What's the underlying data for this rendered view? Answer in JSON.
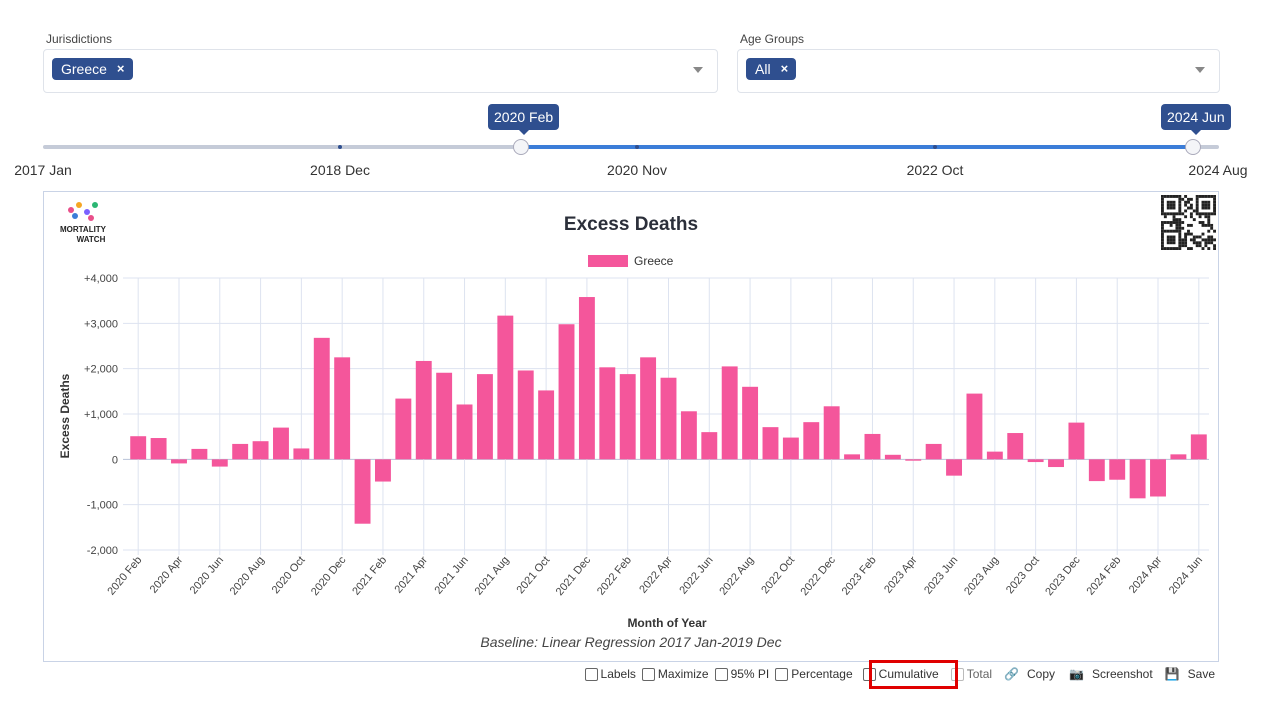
{
  "filters": {
    "jurisdictions": {
      "label": "Jurisdictions",
      "chip": "Greece",
      "remove": "×"
    },
    "age_groups": {
      "label": "Age Groups",
      "chip": "All",
      "remove": "×"
    }
  },
  "slider": {
    "start_value": "2020 Feb",
    "end_value": "2024 Jun",
    "tick_labels": [
      "2017 Jan",
      "2018 Dec",
      "2020 Nov",
      "2022 Oct",
      "2024 Aug"
    ]
  },
  "chart_data": {
    "type": "bar",
    "title": "Excess Deaths",
    "xlabel": "Month of Year",
    "ylabel": "Excess Deaths",
    "subtitle": "Baseline: Linear Regression 2017 Jan-2019 Dec",
    "ylim": [
      -2000,
      4000
    ],
    "yticks": [
      "+4,000",
      "+3,000",
      "+2,000",
      "+1,000",
      "0",
      "-1,000",
      "-2,000"
    ],
    "grid": true,
    "legend_position": "top",
    "series": [
      {
        "name": "Greece",
        "color": "#f4569b",
        "values": [
          510,
          470,
          -90,
          230,
          -160,
          340,
          400,
          700,
          240,
          2680,
          2250,
          -1420,
          -490,
          1340,
          2170,
          1910,
          1210,
          1880,
          3170,
          1960,
          1520,
          2980,
          3580,
          2030,
          1880,
          2250,
          1800,
          1060,
          600,
          2050,
          1600,
          710,
          480,
          820,
          1170,
          110,
          560,
          100,
          -30,
          340,
          -360,
          1450,
          170,
          580,
          -60,
          -170,
          810,
          -480,
          -450,
          -860,
          -820,
          110,
          550
        ]
      }
    ],
    "categories": [
      "2020 Feb",
      "2020 Mar",
      "2020 Apr",
      "2020 May",
      "2020 Jun",
      "2020 Jul",
      "2020 Aug",
      "2020 Sep",
      "2020 Oct",
      "2020 Nov",
      "2020 Dec",
      "2021 Jan",
      "2021 Feb",
      "2021 Mar",
      "2021 Apr",
      "2021 May",
      "2021 Jun",
      "2021 Jul",
      "2021 Aug",
      "2021 Sep",
      "2021 Oct",
      "2021 Nov",
      "2021 Dec",
      "2022 Jan",
      "2022 Feb",
      "2022 Mar",
      "2022 Apr",
      "2022 May",
      "2022 Jun",
      "2022 Jul",
      "2022 Aug",
      "2022 Sep",
      "2022 Oct",
      "2022 Nov",
      "2022 Dec",
      "2023 Jan",
      "2023 Feb",
      "2023 Mar",
      "2023 Apr",
      "2023 May",
      "2023 Jun",
      "2023 Jul",
      "2023 Aug",
      "2023 Sep",
      "2023 Oct",
      "2023 Nov",
      "2023 Dec",
      "2024 Jan",
      "2024 Feb",
      "2024 Mar",
      "2024 Apr",
      "2024 May",
      "2024 Jun"
    ],
    "xtick_labels": [
      "2020 Feb",
      "2020 Apr",
      "2020 Jun",
      "2020 Aug",
      "2020 Oct",
      "2020 Dec",
      "2021 Feb",
      "2021 Apr",
      "2021 Jun",
      "2021 Aug",
      "2021 Oct",
      "2021 Dec",
      "2022 Feb",
      "2022 Apr",
      "2022 Jun",
      "2022 Aug",
      "2022 Oct",
      "2022 Dec",
      "2023 Feb",
      "2023 Apr",
      "2023 Jun",
      "2023 Aug",
      "2023 Oct",
      "2023 Dec",
      "2024 Feb",
      "2024 Apr",
      "2024 Jun"
    ]
  },
  "logo": {
    "line1": "MORTALITY",
    "line2": "WATCH"
  },
  "controls": {
    "labels": "Labels",
    "maximize": "Maximize",
    "pi": "95% PI",
    "percentage": "Percentage",
    "cumulative": "Cumulative",
    "total": "Total",
    "copy": "Copy",
    "screenshot": "Screenshot",
    "save": "Save"
  },
  "colors": {
    "accent": "#2f4f8f",
    "bar": "#f4569b",
    "highlight": "#e00000",
    "slider_track": "#3b7dd8"
  }
}
